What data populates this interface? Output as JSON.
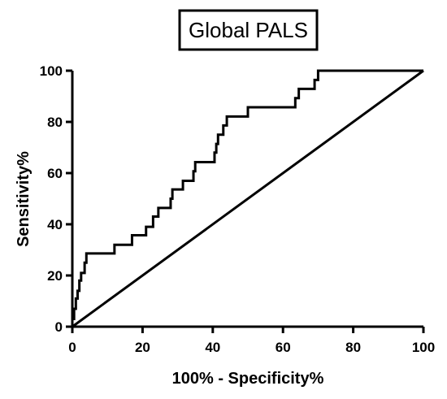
{
  "chart_data": {
    "type": "line",
    "title": "Global PALS",
    "xlabel": "100% - Specificity%",
    "ylabel": "Sensitivity%",
    "xlim": [
      0,
      100
    ],
    "ylim": [
      0,
      100
    ],
    "xticks": [
      "0",
      "20",
      "40",
      "60",
      "80",
      "100"
    ],
    "yticks": [
      "0",
      "20",
      "40",
      "60",
      "80",
      "100"
    ],
    "grid": false,
    "legend": "none",
    "line_color": "#000000",
    "series": [
      {
        "points": [
          [
            0,
            0
          ],
          [
            0,
            3
          ],
          [
            0.5,
            3
          ],
          [
            0.5,
            7
          ],
          [
            1,
            7
          ],
          [
            1,
            11
          ],
          [
            1.5,
            11
          ],
          [
            1.5,
            14
          ],
          [
            2,
            14
          ],
          [
            2,
            18
          ],
          [
            2.5,
            18
          ],
          [
            2.5,
            21
          ],
          [
            3.5,
            21
          ],
          [
            3.5,
            25
          ],
          [
            4,
            25
          ],
          [
            4,
            28.6
          ],
          [
            12,
            28.6
          ],
          [
            12,
            32
          ],
          [
            17,
            32
          ],
          [
            17,
            35.7
          ],
          [
            21,
            35.7
          ],
          [
            21,
            39
          ],
          [
            23,
            39
          ],
          [
            23,
            43
          ],
          [
            24.5,
            43
          ],
          [
            24.5,
            46.4
          ],
          [
            28,
            46.4
          ],
          [
            28,
            50
          ],
          [
            28.5,
            50
          ],
          [
            28.5,
            53.6
          ],
          [
            31.5,
            53.6
          ],
          [
            31.5,
            57
          ],
          [
            34.5,
            57
          ],
          [
            34.5,
            60.7
          ],
          [
            35,
            60.7
          ],
          [
            35,
            64.3
          ],
          [
            40.5,
            64.3
          ],
          [
            40.5,
            68
          ],
          [
            41,
            68
          ],
          [
            41,
            71.4
          ],
          [
            41.5,
            71.4
          ],
          [
            41.5,
            75
          ],
          [
            43,
            75
          ],
          [
            43,
            78.6
          ],
          [
            44,
            78.6
          ],
          [
            44,
            82.1
          ],
          [
            50,
            82.1
          ],
          [
            50,
            85.7
          ],
          [
            63.5,
            85.7
          ],
          [
            63.5,
            89.3
          ],
          [
            64.5,
            89.3
          ],
          [
            64.5,
            92.9
          ],
          [
            69,
            92.9
          ],
          [
            69,
            96.4
          ],
          [
            70,
            96.4
          ],
          [
            70,
            100
          ],
          [
            100,
            100
          ]
        ]
      },
      {
        "points": [
          [
            0,
            0
          ],
          [
            100,
            100
          ]
        ]
      }
    ]
  }
}
